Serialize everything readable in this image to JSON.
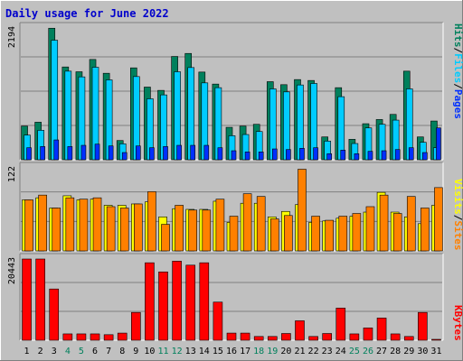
{
  "title": "Daily usage for June 2022",
  "colors": {
    "background": "#c0c0c0",
    "panel": "#c0c0c0",
    "hits": "#00805c",
    "files": "#00ccff",
    "pages": "#0030ff",
    "visits": "#ffff00",
    "sites": "#ff8000",
    "kbytes": "#ff0000",
    "title": "#0000cc",
    "weekend_day": "#00805c",
    "weekday_day": "#000000"
  },
  "chart_data": [
    {
      "type": "bar",
      "name": "hits-files-pages",
      "ymax_label": "2194",
      "ylim": [
        0,
        2194
      ],
      "series_labels": [
        "Pages",
        "Files",
        "Hits"
      ],
      "categories": [
        "1",
        "2",
        "3",
        "4",
        "5",
        "6",
        "7",
        "8",
        "9",
        "10",
        "11",
        "12",
        "13",
        "14",
        "15",
        "16",
        "17",
        "18",
        "19",
        "20",
        "21",
        "22",
        "23",
        "24",
        "25",
        "26",
        "27",
        "28",
        "29",
        "30",
        "31"
      ],
      "series": [
        {
          "name": "Hits",
          "values": [
            560,
            625,
            2190,
            1545,
            1465,
            1670,
            1440,
            320,
            1530,
            1210,
            1155,
            1720,
            1770,
            1460,
            1260,
            540,
            560,
            590,
            1300,
            1250,
            1335,
            1320,
            380,
            1200,
            340,
            600,
            670,
            755,
            1475,
            380,
            645
          ]
        },
        {
          "name": "Files",
          "values": [
            410,
            490,
            1990,
            1475,
            1380,
            1540,
            1330,
            265,
            1385,
            1015,
            1080,
            1465,
            1535,
            1280,
            1200,
            400,
            420,
            470,
            1180,
            1130,
            1245,
            1270,
            310,
            1050,
            270,
            530,
            590,
            660,
            1180,
            290,
            200
          ]
        },
        {
          "name": "Pages",
          "values": [
            200,
            220,
            330,
            220,
            240,
            260,
            230,
            120,
            230,
            200,
            220,
            240,
            240,
            240,
            200,
            150,
            130,
            130,
            180,
            170,
            190,
            200,
            100,
            160,
            100,
            140,
            150,
            170,
            200,
            120,
            530
          ]
        }
      ]
    },
    {
      "type": "bar",
      "name": "visits-sites",
      "ymax_label": "122",
      "ylim": [
        0,
        122
      ],
      "series_labels": [
        "Sites",
        "Visits"
      ],
      "categories": [
        "1",
        "2",
        "3",
        "4",
        "5",
        "6",
        "7",
        "8",
        "9",
        "10",
        "11",
        "12",
        "13",
        "14",
        "15",
        "16",
        "17",
        "18",
        "19",
        "20",
        "21",
        "22",
        "23",
        "24",
        "25",
        "26",
        "27",
        "28",
        "29",
        "30",
        "31"
      ],
      "series": [
        {
          "name": "Visits",
          "values": [
            75,
            78,
            63,
            81,
            75,
            76,
            67,
            67,
            69,
            72,
            50,
            62,
            61,
            61,
            73,
            42,
            70,
            70,
            50,
            58,
            68,
            42,
            44,
            48,
            51,
            57,
            86,
            57,
            50,
            40,
            67
          ]
        },
        {
          "name": "Sites",
          "values": [
            75,
            82,
            63,
            78,
            76,
            78,
            65,
            63,
            69,
            87,
            39,
            67,
            60,
            60,
            76,
            51,
            84,
            80,
            47,
            52,
            120,
            51,
            45,
            51,
            55,
            65,
            82,
            55,
            80,
            63,
            93
          ]
        }
      ]
    },
    {
      "type": "bar",
      "name": "kbytes",
      "ymax_label": "20443",
      "ylim": [
        0,
        20443
      ],
      "series_labels": [
        "KBytes"
      ],
      "categories": [
        "1",
        "2",
        "3",
        "4",
        "5",
        "6",
        "7",
        "8",
        "9",
        "10",
        "11",
        "12",
        "13",
        "14",
        "15",
        "16",
        "17",
        "18",
        "19",
        "20",
        "21",
        "22",
        "23",
        "24",
        "25",
        "26",
        "27",
        "28",
        "29",
        "30",
        "31"
      ],
      "series": [
        {
          "name": "KBytes",
          "values": [
            20443,
            20443,
            12900,
            1600,
            1600,
            1600,
            1400,
            1800,
            7000,
            19500,
            17200,
            19900,
            18900,
            19500,
            9600,
            1800,
            1800,
            950,
            950,
            1700,
            4900,
            950,
            1700,
            8100,
            1600,
            3100,
            5600,
            1600,
            950,
            7000,
            200
          ]
        }
      ]
    }
  ]
}
